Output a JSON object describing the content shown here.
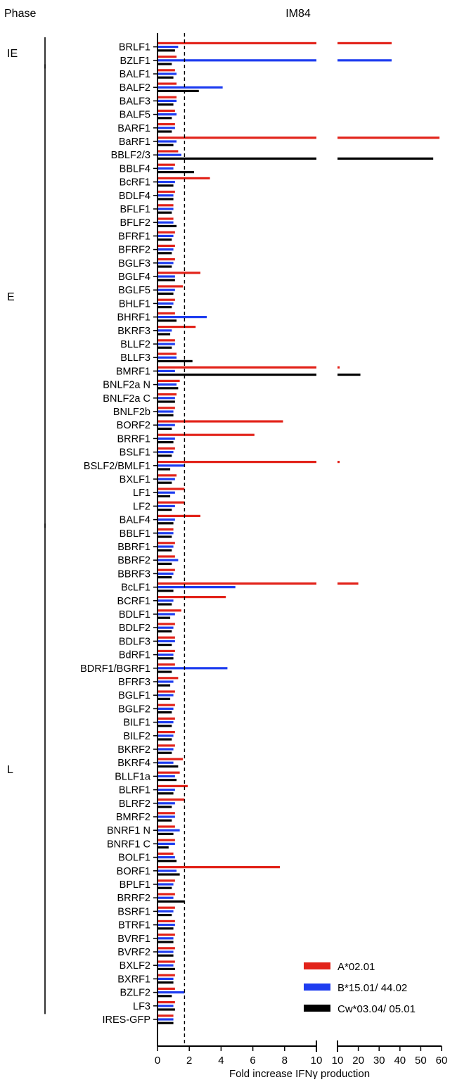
{
  "chart_data": {
    "type": "bar",
    "orientation": "horizontal",
    "title": "IM84",
    "phase_header": "Phase",
    "xlabel": "Fold increase IFNγ production",
    "ylabel": "",
    "xaxis_break": true,
    "xlim_segment1": [
      0,
      10
    ],
    "xlim_segment2": [
      10,
      60
    ],
    "ticks_segment1": [
      "0",
      "2",
      "4",
      "6",
      "8",
      "10"
    ],
    "ticks_segment2": [
      "10",
      "20",
      "30",
      "40",
      "50",
      "60"
    ],
    "tick_values_segment1": [
      0,
      2,
      4,
      6,
      8,
      10
    ],
    "tick_values_segment2": [
      10,
      20,
      30,
      40,
      50,
      60
    ],
    "reference_line": 1.7,
    "legend_position": "bottom-right",
    "grid": false,
    "phases": [
      {
        "label": "IE",
        "start": "BRLF1",
        "end": "BZLF1"
      },
      {
        "label": "E",
        "start": "BALF1",
        "end": "BALF4"
      },
      {
        "label": "L",
        "start": "BBLF1",
        "end": "LF3"
      }
    ],
    "categories": [
      "BRLF1",
      "BZLF1",
      "BALF1",
      "BALF2",
      "BALF3",
      "BALF5",
      "BARF1",
      "BaRF1",
      "BBLF2/3",
      "BBLF4",
      "BcRF1",
      "BDLF4",
      "BFLF1",
      "BFLF2",
      "BFRF1",
      "BFRF2",
      "BGLF3",
      "BGLF4",
      "BGLF5",
      "BHLF1",
      "BHRF1",
      "BKRF3",
      "BLLF2",
      "BLLF3",
      "BMRF1",
      "BNLF2a N",
      "BNLF2a C",
      "BNLF2b",
      "BORF2",
      "BRRF1",
      "BSLF1",
      "BSLF2/BMLF1",
      "BXLF1",
      "LF1",
      "LF2",
      "BALF4",
      "BBLF1",
      "BBRF1",
      "BBRF2",
      "BBRF3",
      "BcLF1",
      "BCRF1",
      "BDLF1",
      "BDLF2",
      "BDLF3",
      "BdRF1",
      "BDRF1/BGRF1",
      "BFRF3",
      "BGLF1",
      "BGLF2",
      "BILF1",
      "BILF2",
      "BKRF2",
      "BKRF4",
      "BLLF1a",
      "BLRF1",
      "BLRF2",
      "BMRF2",
      "BNRF1 N",
      "BNRF1 C",
      "BOLF1",
      "BORF1",
      "BPLF1",
      "BRRF2",
      "BSRF1",
      "BTRF1",
      "BVRF1",
      "BVRF2",
      "BXLF2",
      "BXRF1",
      "BZLF2",
      "LF3",
      "IRES-GFP"
    ],
    "series": [
      {
        "name": "A*02.01",
        "color": "#e2231a",
        "values": [
          36,
          1.2,
          1.1,
          1.2,
          1.2,
          1.1,
          1.1,
          59,
          1.3,
          1.1,
          3.3,
          1.1,
          1.0,
          1.0,
          1.1,
          1.1,
          1.1,
          2.7,
          1.6,
          1.1,
          1.1,
          2.4,
          1.1,
          1.2,
          11,
          1.4,
          1.2,
          1.1,
          7.9,
          6.1,
          1.1,
          11,
          1.2,
          1.7,
          1.7,
          2.7,
          1.0,
          1.1,
          1.1,
          1.1,
          20,
          4.3,
          1.5,
          1.1,
          1.1,
          1.1,
          1.1,
          1.3,
          1.1,
          1.1,
          1.1,
          1.1,
          1.1,
          1.6,
          1.4,
          1.9,
          1.7,
          1.1,
          1.1,
          1.1,
          1.0,
          7.7,
          1.1,
          1.1,
          1.1,
          1.1,
          1.1,
          1.1,
          1.1,
          1.1,
          1.1,
          1.1,
          1.0
        ]
      },
      {
        "name": "B*15.01/ 44.02",
        "color": "#1e3df0",
        "values": [
          1.3,
          36,
          1.2,
          4.1,
          1.2,
          1.2,
          1.1,
          1.2,
          1.5,
          1.0,
          1.1,
          1.0,
          1.0,
          1.0,
          1.0,
          1.0,
          1.0,
          1.1,
          1.1,
          1.0,
          3.1,
          0.9,
          1.1,
          1.2,
          1.1,
          1.2,
          1.1,
          1.0,
          1.1,
          1.1,
          1.0,
          1.7,
          1.1,
          1.1,
          1.1,
          1.1,
          1.0,
          1.0,
          1.3,
          1.0,
          4.9,
          1.0,
          1.1,
          1.0,
          1.1,
          1.0,
          4.4,
          1.0,
          1.0,
          1.0,
          1.0,
          1.0,
          1.0,
          1.0,
          1.1,
          1.1,
          1.1,
          1.1,
          1.4,
          1.1,
          1.1,
          1.2,
          1.0,
          1.0,
          1.0,
          1.1,
          1.0,
          1.0,
          1.0,
          1.0,
          1.7,
          1.0,
          1.0
        ]
      },
      {
        "name": "Cw*03.04/ 05.01",
        "color": "#000000",
        "values": [
          1.1,
          0.9,
          1.0,
          2.6,
          1.0,
          0.9,
          0.9,
          1.0,
          56,
          2.3,
          1.0,
          1.0,
          0.9,
          1.2,
          0.9,
          0.9,
          0.9,
          1.1,
          1.0,
          0.9,
          1.2,
          0.8,
          0.9,
          2.2,
          21,
          1.3,
          1.1,
          1.0,
          0.9,
          1.0,
          0.9,
          0.8,
          0.9,
          0.8,
          0.9,
          1.0,
          0.9,
          0.9,
          0.9,
          0.9,
          1.0,
          0.9,
          0.8,
          0.9,
          0.9,
          1.0,
          0.9,
          0.8,
          0.8,
          0.9,
          0.9,
          0.9,
          0.9,
          1.3,
          1.2,
          1.0,
          0.9,
          0.9,
          1.0,
          0.7,
          1.2,
          1.4,
          0.9,
          1.7,
          0.9,
          1.0,
          1.0,
          1.0,
          1.1,
          1.0,
          0.9,
          1.1,
          1.0
        ]
      }
    ]
  }
}
